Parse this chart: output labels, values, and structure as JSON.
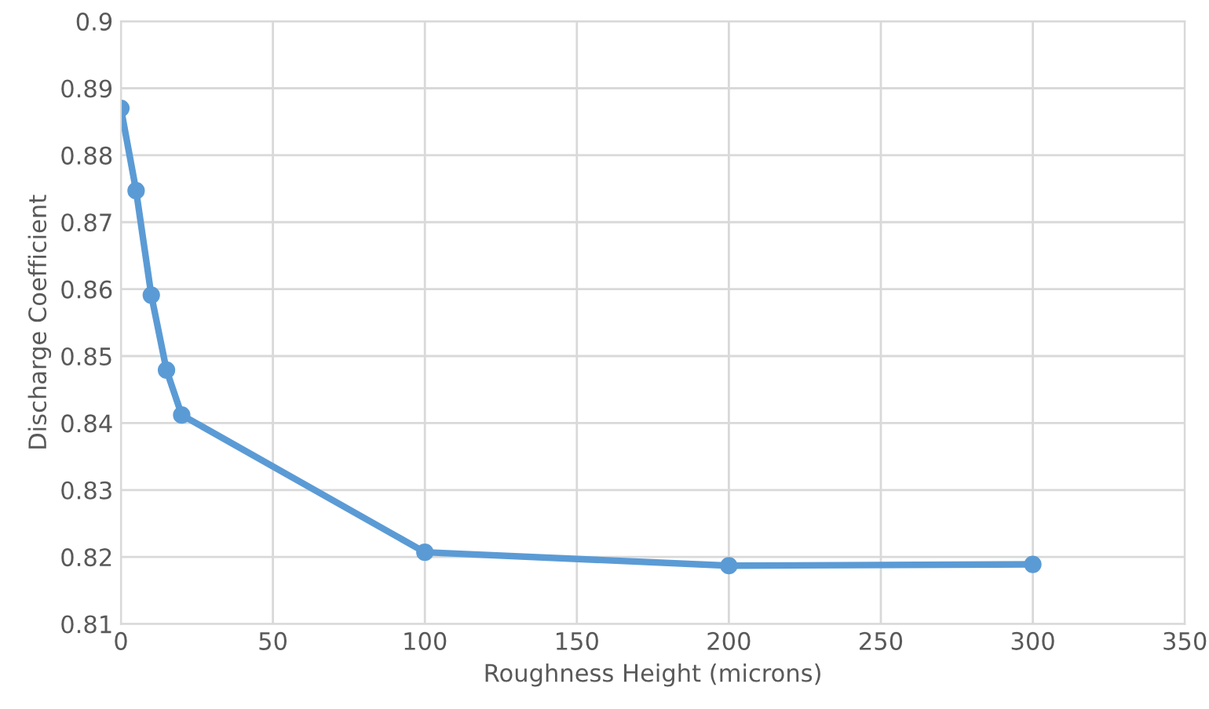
{
  "chart_data": {
    "type": "line",
    "xlabel": "Roughness Height (microns)",
    "ylabel": "Discharge Coefficient",
    "x": [
      0,
      5,
      10,
      15,
      20,
      100,
      200,
      300
    ],
    "series": [
      {
        "color": "#5b9bd5",
        "values": [
          0.887,
          0.8747,
          0.8591,
          0.8479,
          0.8412,
          0.8207,
          0.8187,
          0.8189
        ]
      }
    ],
    "xlim": [
      0,
      350
    ],
    "xticks": [
      0,
      50,
      100,
      150,
      200,
      250,
      300,
      350
    ],
    "ylim": [
      0.81,
      0.9
    ],
    "yticks": [
      {
        "value": 0.81,
        "label": "0.81"
      },
      {
        "value": 0.82,
        "label": "0.82"
      },
      {
        "value": 0.83,
        "label": "0.83"
      },
      {
        "value": 0.84,
        "label": "0.84"
      },
      {
        "value": 0.85,
        "label": "0.85"
      },
      {
        "value": 0.86,
        "label": "0.86"
      },
      {
        "value": 0.87,
        "label": "0.87"
      },
      {
        "value": 0.88,
        "label": "0.88"
      },
      {
        "value": 0.89,
        "label": "0.89"
      },
      {
        "value": 0.9,
        "label": "0.9"
      }
    ],
    "grid": true,
    "marker": "circle",
    "line_style": "solid"
  }
}
